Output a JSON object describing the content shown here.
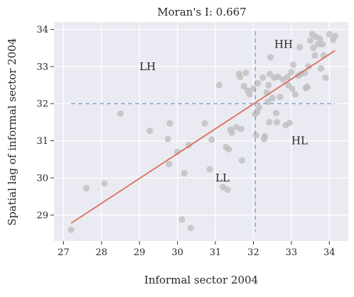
{
  "chart_data": {
    "type": "scatter",
    "title": "Moran's I: 0.667",
    "xlabel": "Informal sector 2004",
    "ylabel": "Spatial lag of informal sector 2004",
    "xlim": [
      26.75,
      34.5
    ],
    "ylim": [
      28.3,
      34.2
    ],
    "x_ticks": [
      27,
      28,
      29,
      30,
      31,
      32,
      33,
      34
    ],
    "y_ticks": [
      29,
      30,
      31,
      32,
      33,
      34
    ],
    "grid": true,
    "reference_lines": {
      "x_mean": 32.05,
      "y_mean": 32.0
    },
    "fit_line": {
      "x": [
        27.2,
        34.15
      ],
      "y": [
        28.78,
        33.43
      ]
    },
    "quadrant_labels": [
      {
        "text": "HH",
        "x": 32.55,
        "y": 33.6
      },
      {
        "text": "LH",
        "x": 29.0,
        "y": 33.0
      },
      {
        "text": "HL",
        "x": 33.0,
        "y": 31.0
      },
      {
        "text": "LL",
        "x": 31.0,
        "y": 30.0
      }
    ],
    "colors": {
      "points": "#bfbfbf",
      "fit": "#dd6e5a",
      "refline": "#8ea6cf",
      "background": "#eaeaf2"
    },
    "points": [
      {
        "x": 27.2,
        "y": 28.6
      },
      {
        "x": 27.6,
        "y": 29.72
      },
      {
        "x": 28.08,
        "y": 29.85
      },
      {
        "x": 28.5,
        "y": 31.73
      },
      {
        "x": 29.27,
        "y": 31.27
      },
      {
        "x": 29.75,
        "y": 31.05
      },
      {
        "x": 29.78,
        "y": 30.37
      },
      {
        "x": 29.8,
        "y": 31.47
      },
      {
        "x": 30.0,
        "y": 30.7
      },
      {
        "x": 30.12,
        "y": 28.88
      },
      {
        "x": 30.18,
        "y": 30.12
      },
      {
        "x": 30.3,
        "y": 30.88
      },
      {
        "x": 30.35,
        "y": 28.65
      },
      {
        "x": 30.72,
        "y": 31.47
      },
      {
        "x": 30.85,
        "y": 30.23
      },
      {
        "x": 30.9,
        "y": 31.03
      },
      {
        "x": 31.1,
        "y": 32.5
      },
      {
        "x": 31.2,
        "y": 29.75
      },
      {
        "x": 31.28,
        "y": 30.83
      },
      {
        "x": 31.32,
        "y": 29.68
      },
      {
        "x": 31.35,
        "y": 30.77
      },
      {
        "x": 31.4,
        "y": 31.3
      },
      {
        "x": 31.43,
        "y": 31.22
      },
      {
        "x": 31.55,
        "y": 31.37
      },
      {
        "x": 31.62,
        "y": 32.8
      },
      {
        "x": 31.65,
        "y": 32.72
      },
      {
        "x": 31.68,
        "y": 31.32
      },
      {
        "x": 31.7,
        "y": 30.47
      },
      {
        "x": 31.75,
        "y": 32.47
      },
      {
        "x": 31.8,
        "y": 32.83
      },
      {
        "x": 31.85,
        "y": 32.35
      },
      {
        "x": 31.9,
        "y": 32.25
      },
      {
        "x": 32.0,
        "y": 32.4
      },
      {
        "x": 32.05,
        "y": 31.72
      },
      {
        "x": 32.07,
        "y": 31.15
      },
      {
        "x": 32.1,
        "y": 31.78
      },
      {
        "x": 32.12,
        "y": 32.55
      },
      {
        "x": 32.15,
        "y": 31.9
      },
      {
        "x": 32.25,
        "y": 32.7
      },
      {
        "x": 32.28,
        "y": 31.05
      },
      {
        "x": 32.3,
        "y": 31.12
      },
      {
        "x": 32.35,
        "y": 32.3
      },
      {
        "x": 32.38,
        "y": 32.05
      },
      {
        "x": 32.4,
        "y": 32.5
      },
      {
        "x": 32.42,
        "y": 31.5
      },
      {
        "x": 32.43,
        "y": 32.8
      },
      {
        "x": 32.45,
        "y": 33.25
      },
      {
        "x": 32.5,
        "y": 32.15
      },
      {
        "x": 32.55,
        "y": 32.7
      },
      {
        "x": 32.6,
        "y": 31.75
      },
      {
        "x": 32.62,
        "y": 31.5
      },
      {
        "x": 32.65,
        "y": 32.72
      },
      {
        "x": 32.7,
        "y": 32.18
      },
      {
        "x": 32.78,
        "y": 32.65
      },
      {
        "x": 32.85,
        "y": 31.42
      },
      {
        "x": 32.9,
        "y": 32.72
      },
      {
        "x": 32.92,
        "y": 32.5
      },
      {
        "x": 32.95,
        "y": 31.48
      },
      {
        "x": 33.0,
        "y": 32.85
      },
      {
        "x": 33.02,
        "y": 32.4
      },
      {
        "x": 33.05,
        "y": 33.05
      },
      {
        "x": 33.1,
        "y": 32.25
      },
      {
        "x": 33.18,
        "y": 32.75
      },
      {
        "x": 33.22,
        "y": 33.52
      },
      {
        "x": 33.25,
        "y": 32.8
      },
      {
        "x": 33.35,
        "y": 32.83
      },
      {
        "x": 33.38,
        "y": 32.42
      },
      {
        "x": 33.42,
        "y": 32.45
      },
      {
        "x": 33.45,
        "y": 33.0
      },
      {
        "x": 33.5,
        "y": 33.7
      },
      {
        "x": 33.55,
        "y": 33.87
      },
      {
        "x": 33.58,
        "y": 33.5
      },
      {
        "x": 33.62,
        "y": 33.3
      },
      {
        "x": 33.65,
        "y": 33.8
      },
      {
        "x": 33.7,
        "y": 33.6
      },
      {
        "x": 33.75,
        "y": 33.75
      },
      {
        "x": 33.78,
        "y": 32.95
      },
      {
        "x": 33.82,
        "y": 33.6
      },
      {
        "x": 33.85,
        "y": 33.3
      },
      {
        "x": 33.9,
        "y": 32.7
      },
      {
        "x": 34.0,
        "y": 33.87
      },
      {
        "x": 34.1,
        "y": 33.72
      },
      {
        "x": 34.15,
        "y": 33.82
      }
    ]
  }
}
